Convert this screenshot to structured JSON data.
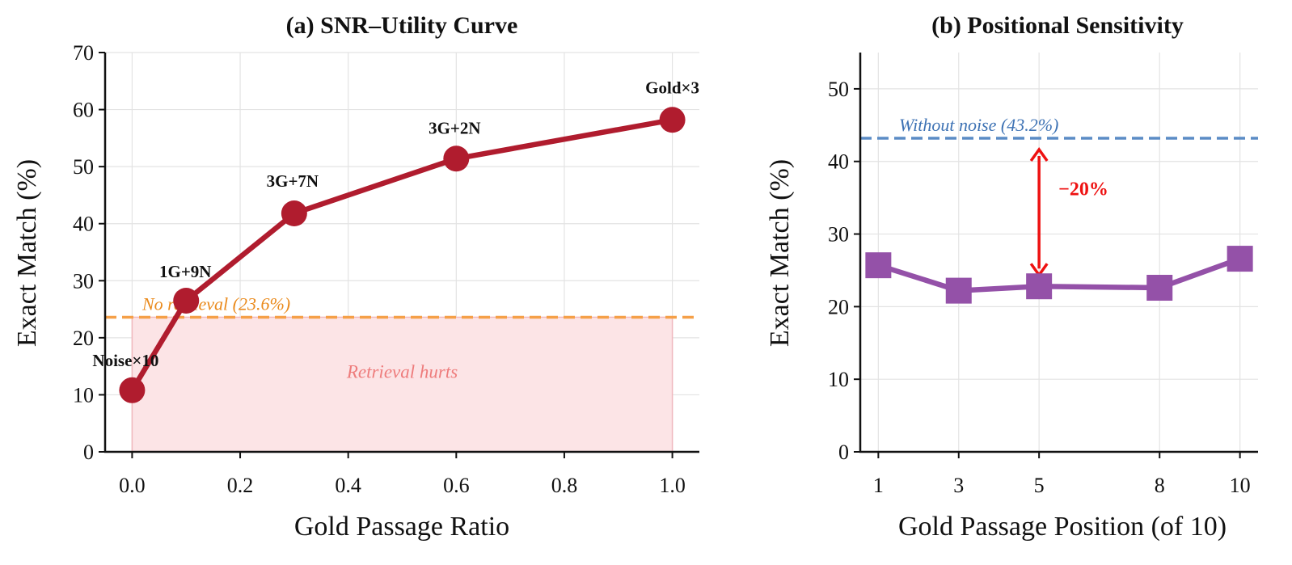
{
  "colors": {
    "curve_a": "#b01c2e",
    "curve_b": "#9451a8",
    "no_retrieval_line": "#f5a048",
    "no_retrieval_text": "#ea8a1c",
    "hurts_fill": "#fce4e6",
    "hurts_edge": "#f0b8bd",
    "hurts_text": "#ee7c7c",
    "without_noise_line": "#5b8cc5",
    "without_noise_text": "#3d72b4",
    "gap_arrow": "#ee1111",
    "grid": "#e3e3e3",
    "axis": "#111111"
  },
  "chart_data": [
    {
      "id": "a",
      "type": "line",
      "title": "(a) SNR–Utility Curve",
      "xlabel": "Gold Passage Ratio",
      "ylabel": "Exact Match (%)",
      "xlim": [
        -0.05,
        1.05
      ],
      "ylim": [
        0,
        70
      ],
      "xticks": [
        0.0,
        0.2,
        0.4,
        0.6,
        0.8,
        1.0
      ],
      "xtick_labels": [
        "0.0",
        "0.2",
        "0.4",
        "0.6",
        "0.8",
        "1.0"
      ],
      "yticks": [
        0,
        10,
        20,
        30,
        40,
        50,
        60,
        70
      ],
      "ytick_labels": [
        "0",
        "10",
        "20",
        "30",
        "40",
        "50",
        "60",
        "70"
      ],
      "grid": true,
      "marker": "circle",
      "points": [
        {
          "x": 0.0,
          "y": 10.8,
          "label": "Noise×10"
        },
        {
          "x": 0.1,
          "y": 26.5,
          "label": "1G+9N"
        },
        {
          "x": 0.3,
          "y": 41.8,
          "label": "3G+7N"
        },
        {
          "x": 0.6,
          "y": 51.4,
          "label": "3G+2N"
        },
        {
          "x": 1.0,
          "y": 58.2,
          "label": "Gold×3"
        }
      ],
      "reference_line": {
        "y": 23.6,
        "label": "No retrieval (23.6%)",
        "style": "dashed"
      },
      "shaded_region": {
        "x": [
          0.0,
          1.0
        ],
        "y": [
          0,
          23.6
        ],
        "label": "Retrieval hurts",
        "label_at": [
          0.5,
          13.0
        ]
      }
    },
    {
      "id": "b",
      "type": "line",
      "title": "(b) Positional Sensitivity",
      "xlabel": "Gold Passage Position (of 10)",
      "ylabel": "Exact Match (%)",
      "xlim": [
        0.55,
        10.45
      ],
      "ylim": [
        0,
        55
      ],
      "xticks": [
        1,
        3,
        5,
        8,
        10
      ],
      "xtick_labels": [
        "1",
        "3",
        "5",
        "8",
        "10"
      ],
      "yticks": [
        0,
        10,
        20,
        30,
        40,
        50
      ],
      "ytick_labels": [
        "0",
        "10",
        "20",
        "30",
        "40",
        "50"
      ],
      "grid": true,
      "marker": "square",
      "points": [
        {
          "x": 1,
          "y": 25.7
        },
        {
          "x": 3,
          "y": 22.2
        },
        {
          "x": 5,
          "y": 22.8
        },
        {
          "x": 8,
          "y": 22.6
        },
        {
          "x": 10,
          "y": 26.6
        }
      ],
      "reference_line": {
        "y": 43.2,
        "label": "Without noise (43.2%)",
        "style": "dashed"
      },
      "gap_annotation": {
        "x": 5,
        "y_from": 43.2,
        "y_to": 22.8,
        "label": "−20%"
      }
    }
  ]
}
